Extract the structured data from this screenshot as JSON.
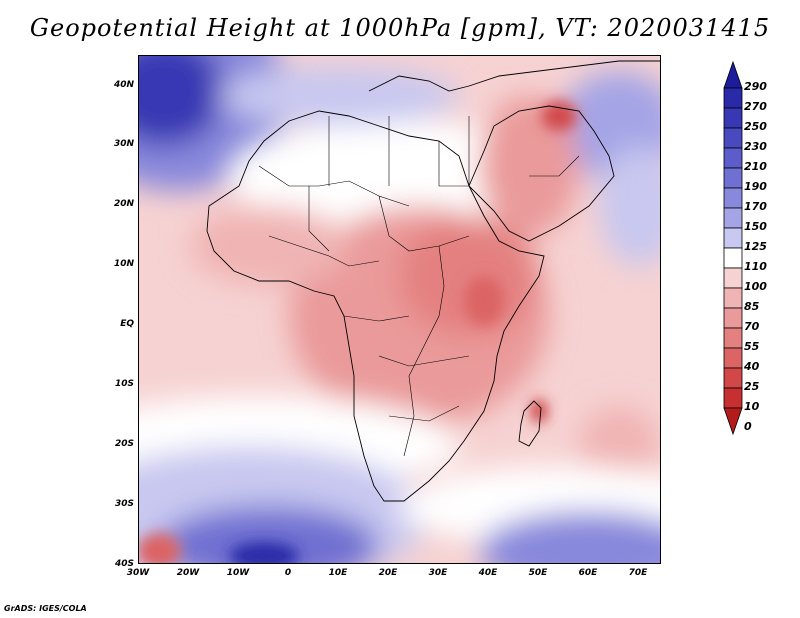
{
  "title": "Geopotential Height at 1000hPa [gpm], VT: 2020031415",
  "credit": "GrADS: IGES/COLA",
  "map": {
    "lat_labels": [
      "40N",
      "30N",
      "20N",
      "10N",
      "EQ",
      "10S",
      "20S",
      "30S",
      "40S"
    ],
    "lon_labels": [
      "30W",
      "20W",
      "10W",
      "0",
      "10E",
      "20E",
      "30E",
      "40E",
      "50E",
      "60E",
      "70E"
    ]
  },
  "colorbar": {
    "levels": [
      "290",
      "270",
      "250",
      "230",
      "210",
      "190",
      "170",
      "150",
      "125",
      "110",
      "100",
      "85",
      "70",
      "55",
      "40",
      "25",
      "10",
      "0"
    ],
    "colors": {
      "290": "#1c1c9c",
      "270": "#2a2aa8",
      "250": "#3838b4",
      "230": "#4a4ac0",
      "210": "#5c5cca",
      "190": "#7070d2",
      "170": "#8888dc",
      "150": "#a4a4e6",
      "125": "#c8c8f0",
      "110": "#ffffff",
      "100": "#f6d2d2",
      "85": "#f0b4b4",
      "70": "#ea9a9a",
      "55": "#e48080",
      "40": "#dc6464",
      "25": "#d24848",
      "10": "#c63030",
      "0": "#b41c1c"
    }
  }
}
